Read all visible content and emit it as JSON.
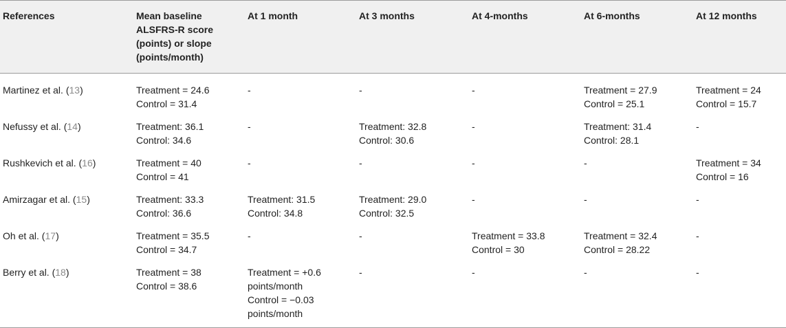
{
  "table": {
    "headers": [
      "References",
      "Mean baseline ALSFRS-R score (points) or slope (points/month)",
      "At 1 month",
      "At 3 months",
      "At 4-months",
      "At 6-months",
      "At 12 months"
    ],
    "header_lines": [
      [
        "References"
      ],
      [
        "Mean baseline",
        "ALSFRS-R score",
        "(points) or slope",
        "(points/month)"
      ],
      [
        "At 1 month"
      ],
      [
        "At 3 months"
      ],
      [
        "At 4-months"
      ],
      [
        "At 6-months"
      ],
      [
        "At 12 months"
      ]
    ],
    "rows": [
      {
        "ref_name": "Martinez et al.",
        "ref_num": "13",
        "cells": [
          [
            "Treatment = 24.6",
            "Control = 31.4"
          ],
          [
            "-"
          ],
          [
            "-"
          ],
          [
            "-"
          ],
          [
            "Treatment = 27.9",
            "Control = 25.1"
          ],
          [
            "Treatment = 24",
            "Control = 15.7"
          ]
        ]
      },
      {
        "ref_name": "Nefussy et al.",
        "ref_num": "14",
        "cells": [
          [
            "Treatment: 36.1",
            "Control: 34.6"
          ],
          [
            "-"
          ],
          [
            "Treatment: 32.8",
            "Control: 30.6"
          ],
          [
            "-"
          ],
          [
            "Treatment: 31.4",
            "Control: 28.1"
          ],
          [
            "-"
          ]
        ]
      },
      {
        "ref_name": "Rushkevich et al.",
        "ref_num": "16",
        "cells": [
          [
            "Treatment = 40",
            "Control = 41"
          ],
          [
            "-"
          ],
          [
            "-"
          ],
          [
            "-"
          ],
          [
            "-"
          ],
          [
            "Treatment = 34",
            "Control = 16"
          ]
        ]
      },
      {
        "ref_name": "Amirzagar et al.",
        "ref_num": "15",
        "cells": [
          [
            "Treatment: 33.3",
            "Control: 36.6"
          ],
          [
            "Treatment: 31.5",
            "Control: 34.8"
          ],
          [
            "Treatment: 29.0",
            "Control: 32.5"
          ],
          [
            "-"
          ],
          [
            "-"
          ],
          [
            "-"
          ]
        ]
      },
      {
        "ref_name": "Oh et al.",
        "ref_num": "17",
        "cells": [
          [
            "Treatment = 35.5",
            "Control = 34.7"
          ],
          [
            "-"
          ],
          [
            "-"
          ],
          [
            "Treatment = 33.8",
            "Control = 30"
          ],
          [
            "Treatment = 32.4",
            "Control = 28.22"
          ],
          [
            "-"
          ]
        ]
      },
      {
        "ref_name": "Berry et al.",
        "ref_num": "18",
        "cells": [
          [
            "Treatment = 38",
            "Control = 38.6"
          ],
          [
            "Treatment = +0.6",
            "points/month",
            "Control = −0.03",
            "points/month"
          ],
          [
            "-"
          ],
          [
            "-"
          ],
          [
            "-"
          ],
          [
            "-"
          ]
        ]
      }
    ]
  }
}
